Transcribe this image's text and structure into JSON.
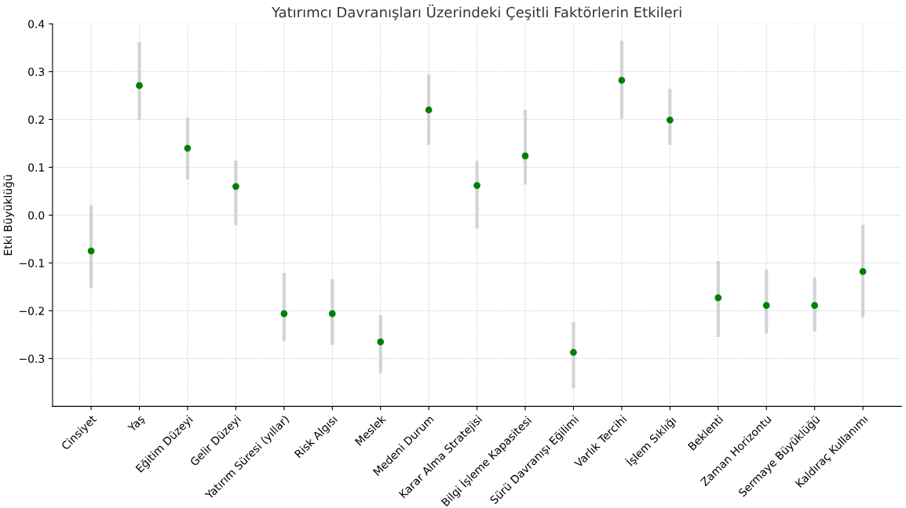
{
  "chart_data": {
    "type": "scatter",
    "title": "Yatırımcı Davranışları Üzerindeki Çeşitli Faktörlerin Etkileri",
    "ylabel": "Etki Büyüklüğü",
    "categories": [
      "Cinsiyet",
      "Yaş",
      "Eğitim Düzeyi",
      "Gelir Düzeyi",
      "Yatırım Süresi (yıllar)",
      "Risk Algısı",
      "Meslek",
      "Medeni Durum",
      "Karar Alma Stratejisi",
      "Bilgi İşleme Kapasitesi",
      "Sürü Davranışı Eğilimi",
      "Varlık Tercihi",
      "İşlem Sıklığı",
      "Beklenti",
      "Zaman Horizontu",
      "Sermaye Büyüklüğü",
      "Kaldıraç Kullanımı"
    ],
    "series": [
      {
        "color": "#008000",
        "values": [
          -0.075,
          0.271,
          0.14,
          0.06,
          -0.206,
          -0.206,
          -0.265,
          0.22,
          0.062,
          0.124,
          -0.287,
          0.282,
          0.199,
          -0.173,
          -0.189,
          -0.189,
          -0.118
        ],
        "errors": [
          [
            -0.152,
            0.021
          ],
          [
            0.199,
            0.362
          ],
          [
            0.075,
            0.204
          ],
          [
            -0.021,
            0.114
          ],
          [
            -0.263,
            -0.121
          ],
          [
            -0.271,
            -0.134
          ],
          [
            -0.331,
            -0.209
          ],
          [
            0.147,
            0.294
          ],
          [
            -0.028,
            0.113
          ],
          [
            0.064,
            0.22
          ],
          [
            -0.362,
            -0.224
          ],
          [
            0.202,
            0.365
          ],
          [
            0.147,
            0.264
          ],
          [
            -0.255,
            -0.096
          ],
          [
            -0.248,
            -0.114
          ],
          [
            -0.243,
            -0.131
          ],
          [
            -0.214,
            -0.02
          ]
        ]
      }
    ],
    "ylim": [
      -0.4,
      0.4
    ],
    "yticks": [
      {
        "value": -0.3,
        "label": "−0.3"
      },
      {
        "value": -0.2,
        "label": "−0.2"
      },
      {
        "value": -0.1,
        "label": "−0.1"
      },
      {
        "value": 0.0,
        "label": "0.0"
      },
      {
        "value": 0.1,
        "label": "0.1"
      },
      {
        "value": 0.2,
        "label": "0.2"
      },
      {
        "value": 0.3,
        "label": "0.3"
      },
      {
        "value": 0.4,
        "label": "0.4"
      }
    ],
    "grid": true,
    "marker": "circle"
  }
}
